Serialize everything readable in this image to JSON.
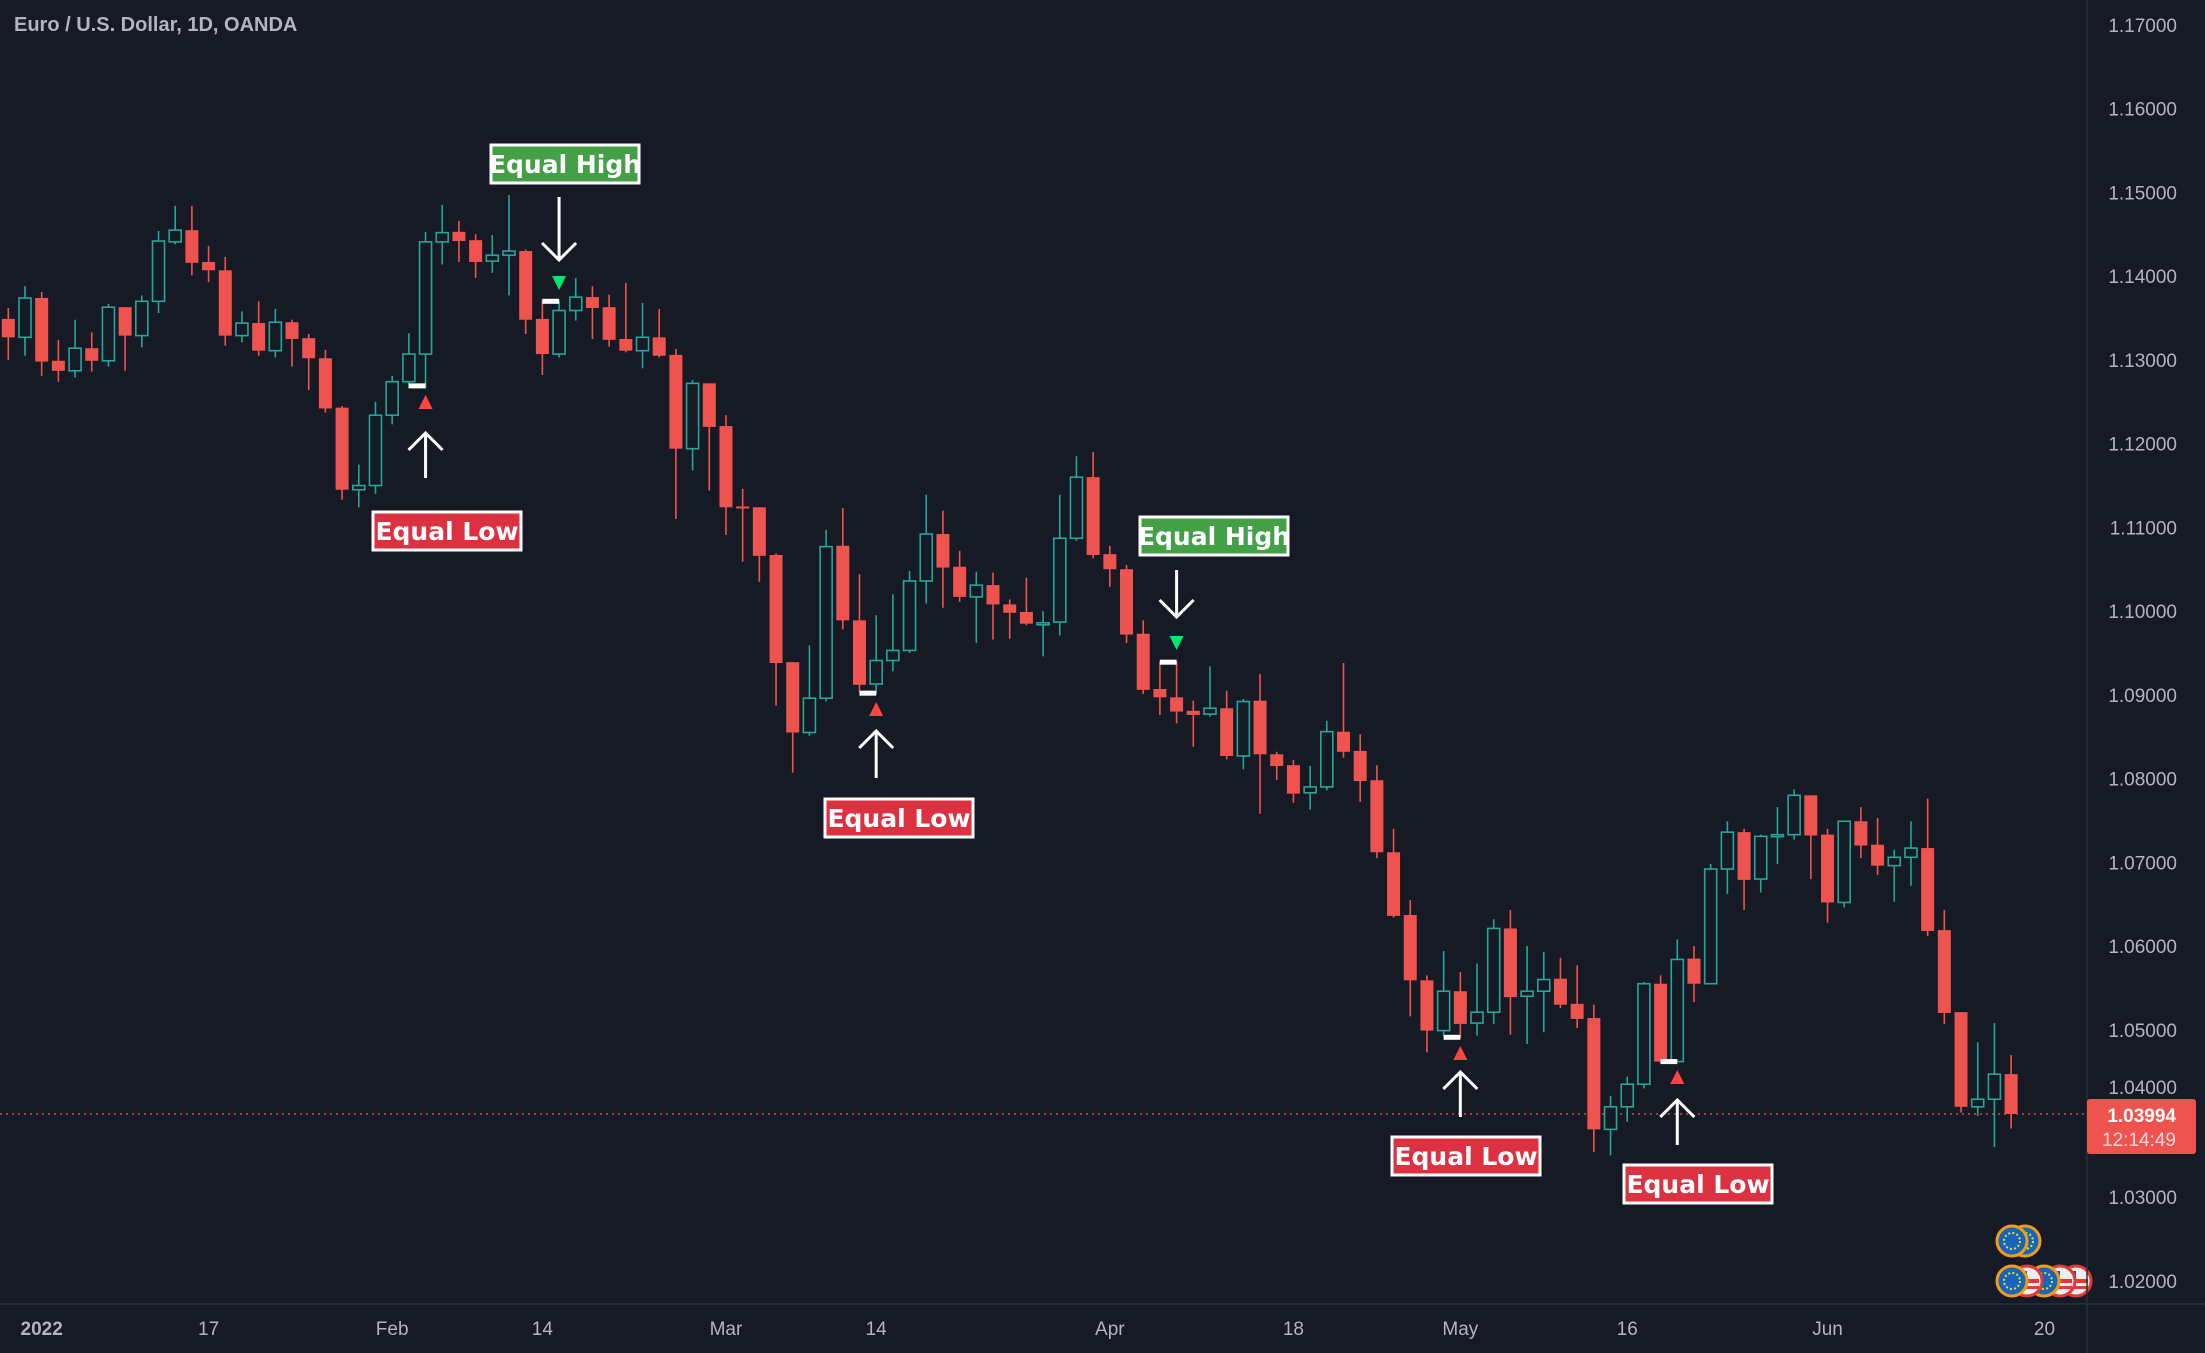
{
  "header": {
    "title": "Euro / U.S. Dollar, 1D, OANDA"
  },
  "price_tag": {
    "price": "1.03994",
    "countdown": "12:14:49"
  },
  "colors": {
    "background": "#161a25",
    "up": "#26a69a",
    "down": "#ef5350",
    "equal_high_label": "#43a047",
    "equal_low_label": "#dc3140",
    "high_marker": "#00e676",
    "low_marker": "#ff4444",
    "axis_text": "#b2b5be",
    "grid_border": "#2a2e39"
  },
  "chart_data": {
    "type": "candlestick",
    "title": "Euro / U.S. Dollar, 1D, OANDA",
    "symbol": "EURUSD",
    "timeframe": "1D",
    "ylim": [
      1.0135,
      1.173
    ],
    "last_price": 1.03994,
    "y_ticks": [
      "1.17000",
      "1.16000",
      "1.15000",
      "1.14000",
      "1.13000",
      "1.12000",
      "1.11000",
      "1.10000",
      "1.09000",
      "1.08000",
      "1.07000",
      "1.06000",
      "1.05000",
      "1.04000",
      "1.03000",
      "1.02000"
    ],
    "x_ticks": [
      {
        "label": "2022",
        "bar": 2
      },
      {
        "label": "17",
        "bar": 12
      },
      {
        "label": "Feb",
        "bar": 23
      },
      {
        "label": "14",
        "bar": 32
      },
      {
        "label": "Mar",
        "bar": 43
      },
      {
        "label": "14",
        "bar": 52
      },
      {
        "label": "Apr",
        "bar": 66
      },
      {
        "label": "18",
        "bar": 77
      },
      {
        "label": "May",
        "bar": 87
      },
      {
        "label": "16",
        "bar": 97
      },
      {
        "label": "Jun",
        "bar": 109
      },
      {
        "label": "20",
        "bar": 122
      }
    ],
    "ohlc": [
      [
        1.1349,
        1.1362,
        1.13,
        1.1327
      ],
      [
        1.1327,
        1.1388,
        1.1305,
        1.1374
      ],
      [
        1.1374,
        1.1381,
        1.1281,
        1.1298
      ],
      [
        1.1299,
        1.1324,
        1.1274,
        1.1287
      ],
      [
        1.1287,
        1.1348,
        1.1279,
        1.1314
      ],
      [
        1.1314,
        1.1333,
        1.1286,
        1.1299
      ],
      [
        1.1299,
        1.1367,
        1.1292,
        1.1363
      ],
      [
        1.1363,
        1.1363,
        1.1287,
        1.1329
      ],
      [
        1.1329,
        1.1377,
        1.1315,
        1.137
      ],
      [
        1.137,
        1.1454,
        1.1356,
        1.1442
      ],
      [
        1.1441,
        1.1484,
        1.1438,
        1.1455
      ],
      [
        1.1455,
        1.1484,
        1.1401,
        1.1416
      ],
      [
        1.1417,
        1.1436,
        1.1393,
        1.1407
      ],
      [
        1.1407,
        1.1423,
        1.1317,
        1.1329
      ],
      [
        1.1329,
        1.1358,
        1.1321,
        1.1344
      ],
      [
        1.1344,
        1.137,
        1.1305,
        1.1311
      ],
      [
        1.1311,
        1.1361,
        1.1303,
        1.1345
      ],
      [
        1.1345,
        1.1348,
        1.1292,
        1.1325
      ],
      [
        1.1326,
        1.1331,
        1.1264,
        1.1302
      ],
      [
        1.1302,
        1.1312,
        1.1237,
        1.1242
      ],
      [
        1.1243,
        1.1245,
        1.1133,
        1.1145
      ],
      [
        1.1145,
        1.1175,
        1.1124,
        1.115
      ],
      [
        1.115,
        1.125,
        1.114,
        1.1234
      ],
      [
        1.1234,
        1.1281,
        1.1223,
        1.1274
      ],
      [
        1.1274,
        1.1332,
        1.1266,
        1.1307
      ],
      [
        1.1307,
        1.1453,
        1.1266,
        1.1441
      ],
      [
        1.1441,
        1.1485,
        1.1414,
        1.1452
      ],
      [
        1.1453,
        1.1466,
        1.1417,
        1.1442
      ],
      [
        1.1443,
        1.145,
        1.1398,
        1.1417
      ],
      [
        1.1418,
        1.1449,
        1.1404,
        1.1425
      ],
      [
        1.1425,
        1.1497,
        1.1377,
        1.143
      ],
      [
        1.143,
        1.1432,
        1.1331,
        1.1348
      ],
      [
        1.1349,
        1.1372,
        1.1282,
        1.1307
      ],
      [
        1.1307,
        1.1371,
        1.1303,
        1.1359
      ],
      [
        1.1359,
        1.1398,
        1.1347,
        1.1375
      ],
      [
        1.1375,
        1.1388,
        1.1325,
        1.1362
      ],
      [
        1.1363,
        1.1378,
        1.1316,
        1.1324
      ],
      [
        1.1325,
        1.1392,
        1.1309,
        1.1311
      ],
      [
        1.1311,
        1.1368,
        1.129,
        1.1327
      ],
      [
        1.1327,
        1.1361,
        1.1303,
        1.1305
      ],
      [
        1.1306,
        1.1313,
        1.111,
        1.1194
      ],
      [
        1.1194,
        1.1276,
        1.1168,
        1.1272
      ],
      [
        1.1272,
        1.1272,
        1.1144,
        1.122
      ],
      [
        1.1221,
        1.1234,
        1.1091,
        1.1124
      ],
      [
        1.1125,
        1.1146,
        1.1059,
        1.1123
      ],
      [
        1.1124,
        1.1124,
        1.1035,
        1.1066
      ],
      [
        1.1067,
        1.1069,
        1.0887,
        1.0938
      ],
      [
        1.0939,
        1.0939,
        1.0807,
        1.0855
      ],
      [
        1.0855,
        1.0959,
        1.0851,
        1.0896
      ],
      [
        1.0896,
        1.1097,
        1.0892,
        1.1077
      ],
      [
        1.1078,
        1.1123,
        1.0978,
        1.0989
      ],
      [
        1.0989,
        1.1044,
        1.0904,
        1.0912
      ],
      [
        1.0913,
        1.0995,
        1.0901,
        1.0941
      ],
      [
        1.0941,
        1.102,
        1.0928,
        1.0953
      ],
      [
        1.0953,
        1.1048,
        1.095,
        1.1036
      ],
      [
        1.1036,
        1.1139,
        1.1009,
        1.1092
      ],
      [
        1.1092,
        1.112,
        1.1004,
        1.1052
      ],
      [
        1.1053,
        1.1072,
        1.1011,
        1.1017
      ],
      [
        1.1017,
        1.1047,
        1.0962,
        1.1031
      ],
      [
        1.1031,
        1.1046,
        1.0966,
        1.1008
      ],
      [
        1.1008,
        1.1014,
        1.0967,
        1.0998
      ],
      [
        1.0999,
        1.104,
        1.0983,
        1.0985
      ],
      [
        1.0985,
        1.1,
        1.0946,
        1.0986
      ],
      [
        1.0987,
        1.1139,
        1.0971,
        1.1087
      ],
      [
        1.1087,
        1.1185,
        1.1084,
        1.116
      ],
      [
        1.116,
        1.119,
        1.1063,
        1.1067
      ],
      [
        1.1068,
        1.1078,
        1.1029,
        1.105
      ],
      [
        1.105,
        1.1055,
        1.0962,
        1.0972
      ],
      [
        1.0973,
        1.0989,
        1.0901,
        1.0906
      ],
      [
        1.0907,
        1.094,
        1.0876,
        1.0897
      ],
      [
        1.0897,
        1.094,
        1.0866,
        1.088
      ],
      [
        1.0881,
        1.0893,
        1.0838,
        1.0876
      ],
      [
        1.0877,
        1.0934,
        1.0874,
        1.0884
      ],
      [
        1.0884,
        1.0905,
        1.0823,
        1.0827
      ],
      [
        1.0827,
        1.0895,
        1.0811,
        1.0892
      ],
      [
        1.0893,
        1.0925,
        1.0758,
        1.0829
      ],
      [
        1.0829,
        1.0832,
        1.0798,
        1.0815
      ],
      [
        1.0816,
        1.0822,
        1.0771,
        1.0782
      ],
      [
        1.0783,
        1.0815,
        1.0763,
        1.079
      ],
      [
        1.079,
        1.0869,
        1.0786,
        1.0856
      ],
      [
        1.0856,
        1.0938,
        1.0825,
        1.0832
      ],
      [
        1.0833,
        1.0853,
        1.0772,
        1.0797
      ],
      [
        1.0798,
        1.0816,
        1.0705,
        1.0712
      ],
      [
        1.0712,
        1.074,
        1.0634,
        1.0636
      ],
      [
        1.0637,
        1.0655,
        1.0516,
        1.0559
      ],
      [
        1.0559,
        1.0565,
        1.0473,
        1.0499
      ],
      [
        1.0499,
        1.0594,
        1.0493,
        1.0546
      ],
      [
        1.0546,
        1.0569,
        1.049,
        1.0507
      ],
      [
        1.0508,
        1.0579,
        1.0493,
        1.0521
      ],
      [
        1.0521,
        1.0632,
        1.0507,
        1.0621
      ],
      [
        1.0621,
        1.0643,
        1.0494,
        1.0539
      ],
      [
        1.054,
        1.06,
        1.0483,
        1.0546
      ],
      [
        1.0546,
        1.0593,
        1.0497,
        1.056
      ],
      [
        1.0561,
        1.0586,
        1.0526,
        1.053
      ],
      [
        1.0531,
        1.0577,
        1.0502,
        1.0513
      ],
      [
        1.0514,
        1.053,
        1.0354,
        1.0381
      ],
      [
        1.0381,
        1.0421,
        1.035,
        1.0408
      ],
      [
        1.0408,
        1.0444,
        1.039,
        1.0435
      ],
      [
        1.0435,
        1.0557,
        1.043,
        1.0555
      ],
      [
        1.0555,
        1.0565,
        1.046,
        1.0462
      ],
      [
        1.0462,
        1.0608,
        1.0462,
        1.0584
      ],
      [
        1.0585,
        1.06,
        1.0533,
        1.0555
      ],
      [
        1.0555,
        1.0698,
        1.0555,
        1.0692
      ],
      [
        1.0692,
        1.0749,
        1.0662,
        1.0736
      ],
      [
        1.0736,
        1.074,
        1.0643,
        1.0679
      ],
      [
        1.068,
        1.0733,
        1.0664,
        1.0731
      ],
      [
        1.0731,
        1.0766,
        1.0698,
        1.0733
      ],
      [
        1.0733,
        1.0787,
        1.0727,
        1.078
      ],
      [
        1.078,
        1.078,
        1.068,
        1.0732
      ],
      [
        1.0733,
        1.074,
        1.0628,
        1.0652
      ],
      [
        1.0652,
        1.075,
        1.0646,
        1.0749
      ],
      [
        1.0749,
        1.0766,
        1.0705,
        1.072
      ],
      [
        1.0721,
        1.0753,
        1.0685,
        1.0696
      ],
      [
        1.0696,
        1.0715,
        1.0653,
        1.0706
      ],
      [
        1.0706,
        1.0749,
        1.0672,
        1.0717
      ],
      [
        1.0717,
        1.0776,
        1.0612,
        1.0618
      ],
      [
        1.0619,
        1.0643,
        1.0507,
        1.052
      ],
      [
        1.0521,
        1.0521,
        1.0401,
        1.0408
      ],
      [
        1.0408,
        1.0485,
        1.0397,
        1.0417
      ],
      [
        1.0417,
        1.0508,
        1.036,
        1.0447
      ],
      [
        1.0447,
        1.047,
        1.0382,
        1.03994
      ]
    ],
    "annotations": [
      {
        "type": "low",
        "label": "Equal Low",
        "bars": [
          24,
          25
        ],
        "price": 1.1269
      },
      {
        "type": "high",
        "label": "Equal High",
        "bars": [
          32,
          33
        ],
        "price": 1.137
      },
      {
        "type": "low",
        "label": "Equal Low",
        "bars": [
          51,
          52
        ],
        "price": 1.0902
      },
      {
        "type": "high",
        "label": "Equal High",
        "bars": [
          69,
          70
        ],
        "price": 1.0939
      },
      {
        "type": "low",
        "label": "Equal Low",
        "bars": [
          86,
          87
        ],
        "price": 1.0491
      },
      {
        "type": "low",
        "label": "Equal Low",
        "bars": [
          99,
          100
        ],
        "price": 1.0462
      }
    ],
    "events": [
      {
        "icon": "eu-flag-icon"
      },
      {
        "icon": "eu-flag-icon"
      },
      {
        "icon": "us-flag-icon"
      },
      {
        "icon": "us-flag-icon"
      },
      {
        "icon": "eu-flag-icon"
      },
      {
        "icon": "us-flag-icon"
      },
      {
        "icon": "eu-flag-icon"
      }
    ]
  }
}
